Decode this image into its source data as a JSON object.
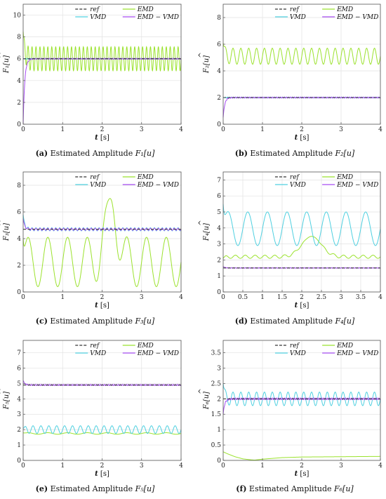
{
  "colors": {
    "ref": "#333333",
    "vmd": "#4fd0e0",
    "emd": "#9be22d",
    "emdvmd": "#a64cf2",
    "grid": "#e2e2e2",
    "axis": "#555555"
  },
  "chart_data": [
    {
      "type": "line",
      "id": "a",
      "caption_label": "(a)",
      "caption_text": "Estimated Amplitude ",
      "ylabel": "F₁[u]",
      "xlabel_var": "t",
      "xlabel_unit": " [s]",
      "xlim": [
        0,
        4
      ],
      "ylim": [
        0,
        11
      ],
      "xticks": [
        "0",
        "1",
        "2",
        "3",
        "4"
      ],
      "yticks": [
        "0",
        "2",
        "4",
        "6",
        "8",
        "10"
      ],
      "legend": [
        "ref",
        "EMD",
        "VMD",
        "EMD − VMD"
      ],
      "series": [
        {
          "name": "ref",
          "constant": 6
        },
        {
          "name": "VMD",
          "constant": 6,
          "start": 6,
          "osc_amp": 0.05,
          "period": 0.05
        },
        {
          "name": "EMD",
          "mean": 6,
          "start": 8.5,
          "osc_amp": 1.1,
          "period": 0.1
        },
        {
          "name": "EMD − VMD",
          "constant": 6,
          "start": 0,
          "osc_amp": 0.05,
          "period": 0.05
        }
      ]
    },
    {
      "type": "line",
      "id": "b",
      "caption_label": "(b)",
      "caption_text": "Estimated Amplitude ",
      "ylabel": "F₂[u]",
      "xlabel_var": "t",
      "xlabel_unit": " [s]",
      "xlim": [
        0,
        4
      ],
      "ylim": [
        0,
        9
      ],
      "xticks": [
        "0",
        "1",
        "2",
        "3",
        "4"
      ],
      "yticks": [
        "0",
        "2",
        "4",
        "6",
        "8"
      ],
      "legend": [
        "ref",
        "EMD",
        "VMD",
        "EMD − VMD"
      ],
      "series": [
        {
          "name": "ref",
          "constant": 2
        },
        {
          "name": "VMD",
          "constant": 2,
          "start": 2,
          "osc_amp": 0.04,
          "period": 0.05
        },
        {
          "name": "EMD",
          "mean": 5.1,
          "start": 6.1,
          "osc_amp": 0.6,
          "period": 0.2
        },
        {
          "name": "EMD − VMD",
          "constant": 2,
          "start": 0.5,
          "osc_amp": 0.04,
          "period": 0.05
        }
      ]
    },
    {
      "type": "line",
      "id": "c",
      "caption_label": "(c)",
      "caption_text": "Estimated Amplitude ",
      "ylabel": "F₃[u]",
      "xlabel_var": "t",
      "xlabel_unit": " [s]",
      "xlim": [
        0,
        4
      ],
      "ylim": [
        0,
        9
      ],
      "xticks": [
        "0",
        "1",
        "2",
        "3",
        "4"
      ],
      "yticks": [
        "0",
        "2",
        "4",
        "6",
        "8"
      ],
      "legend": [
        "ref",
        "EMD",
        "VMD",
        "EMD − VMD"
      ],
      "series": [
        {
          "name": "ref",
          "constant": 4.7
        },
        {
          "name": "VMD",
          "constant": 4.7,
          "start": 5.8,
          "osc_amp": 0.12,
          "period": 0.1
        },
        {
          "name": "EMD",
          "mean": 2.25,
          "start": 4.0,
          "osc_amp": 1.85,
          "period": 0.5,
          "bump_center": 2.2,
          "bump_width": 0.2,
          "bump_height": 5.6
        },
        {
          "name": "EMD − VMD",
          "constant": 4.7,
          "start": 5.5,
          "osc_amp": 0.08,
          "period": 0.1
        }
      ]
    },
    {
      "type": "line",
      "id": "d",
      "caption_label": "(d)",
      "caption_text": "Estimated Amplitude ",
      "ylabel": "F₄[u]",
      "xlabel_var": "t",
      "xlabel_unit": " [s]",
      "xlim": [
        0,
        4
      ],
      "ylim": [
        0,
        7.5
      ],
      "xticks": [
        "0",
        "0.5",
        "1",
        "1.5",
        "2",
        "2.5",
        "3",
        "3.5",
        "4"
      ],
      "yticks": [
        "0",
        "1",
        "2",
        "3",
        "4",
        "5",
        "6",
        "7"
      ],
      "legend": [
        "ref",
        "EMD",
        "VMD",
        "EMD − VMD"
      ],
      "series": [
        {
          "name": "ref",
          "constant": 1.5
        },
        {
          "name": "VMD",
          "mean": 3.95,
          "start": 5.5,
          "osc_amp": 1.05,
          "period": 0.5
        },
        {
          "name": "EMD",
          "mean": 2.2,
          "start": 2.1,
          "osc_amp": 0.1,
          "period": 0.25,
          "bump_center": 2.25,
          "bump_width": 0.35,
          "bump_height": 1.5
        },
        {
          "name": "EMD − VMD",
          "constant": 1.5,
          "start": 1.6,
          "osc_amp": 0.02,
          "period": 0.05
        }
      ]
    },
    {
      "type": "line",
      "id": "e",
      "caption_label": "(e)",
      "caption_text": "Estimated Amplitude ",
      "ylabel": "F₅[u]",
      "xlabel_var": "t",
      "xlabel_unit": " [s]",
      "xlim": [
        0,
        4
      ],
      "ylim": [
        0,
        7.8
      ],
      "xticks": [
        "0",
        "1",
        "2",
        "3",
        "4"
      ],
      "yticks": [
        "0",
        "1",
        "2",
        "3",
        "4",
        "5",
        "6",
        "7"
      ],
      "legend": [
        "ref",
        "EMD",
        "VMD",
        "EMD − VMD"
      ],
      "series": [
        {
          "name": "ref",
          "constant": 4.9
        },
        {
          "name": "VMD",
          "mean": 2.0,
          "start": 2.1,
          "osc_amp": 0.25,
          "period": 0.2
        },
        {
          "name": "EMD",
          "mean": 1.75,
          "start": 1.8,
          "osc_amp": 0.05,
          "period": 0.5
        },
        {
          "name": "EMD − VMD",
          "constant": 4.9,
          "start": 5.2,
          "osc_amp": 0.04,
          "period": 0.05
        }
      ]
    },
    {
      "type": "line",
      "id": "f",
      "caption_label": "(f)",
      "caption_text": "Estimated Amplitude ",
      "ylabel": "F₆[u]",
      "xlabel_var": "t",
      "xlabel_unit": " [s]",
      "xlim": [
        0,
        4
      ],
      "ylim": [
        0,
        3.9
      ],
      "xticks": [
        "0",
        "1",
        "2",
        "3",
        "4"
      ],
      "yticks": [
        "0",
        "0.5",
        "1",
        "1.5",
        "2",
        "2.5",
        "3",
        "3.5"
      ],
      "legend": [
        "ref",
        "EMD",
        "VMD",
        "EMD − VMD"
      ],
      "series": [
        {
          "name": "ref",
          "constant": 2
        },
        {
          "name": "VMD",
          "mean": 2.0,
          "start": 2.5,
          "osc_amp": 0.22,
          "period": 0.2
        },
        {
          "name": "EMD",
          "points": [
            [
              0,
              0.28
            ],
            [
              0.1,
              0.22
            ],
            [
              0.3,
              0.12
            ],
            [
              0.5,
              0.05
            ],
            [
              0.7,
              0.02
            ],
            [
              0.8,
              0.01
            ],
            [
              1.0,
              0.04
            ],
            [
              1.5,
              0.09
            ],
            [
              2.0,
              0.11
            ],
            [
              3.0,
              0.12
            ],
            [
              4.0,
              0.13
            ]
          ]
        },
        {
          "name": "EMD − VMD",
          "constant": 2,
          "start": 1.5,
          "osc_amp": 0.03,
          "period": 0.05
        }
      ]
    }
  ]
}
